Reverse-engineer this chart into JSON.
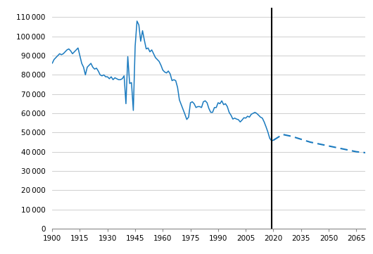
{
  "historical_years": [
    1900,
    1901,
    1902,
    1903,
    1904,
    1905,
    1906,
    1907,
    1908,
    1909,
    1910,
    1911,
    1912,
    1913,
    1914,
    1915,
    1916,
    1917,
    1918,
    1919,
    1920,
    1921,
    1922,
    1923,
    1924,
    1925,
    1926,
    1927,
    1928,
    1929,
    1930,
    1931,
    1932,
    1933,
    1934,
    1935,
    1936,
    1937,
    1938,
    1939,
    1940,
    1941,
    1942,
    1943,
    1944,
    1945,
    1946,
    1947,
    1948,
    1949,
    1950,
    1951,
    1952,
    1953,
    1954,
    1955,
    1956,
    1957,
    1958,
    1959,
    1960,
    1961,
    1962,
    1963,
    1964,
    1965,
    1966,
    1967,
    1968,
    1969,
    1970,
    1971,
    1972,
    1973,
    1974,
    1975,
    1976,
    1977,
    1978,
    1979,
    1980,
    1981,
    1982,
    1983,
    1984,
    1985,
    1986,
    1987,
    1988,
    1989,
    1990,
    1991,
    1992,
    1993,
    1994,
    1995,
    1996,
    1997,
    1998,
    1999,
    2000,
    2001,
    2002,
    2003,
    2004,
    2005,
    2006,
    2007,
    2008,
    2009,
    2010,
    2011,
    2012,
    2013,
    2014,
    2015,
    2016,
    2017,
    2018,
    2019,
    2020
  ],
  "historical_values": [
    86000,
    88000,
    89000,
    90000,
    91000,
    90500,
    91000,
    92000,
    93000,
    93500,
    92500,
    91000,
    92000,
    93000,
    94000,
    90000,
    86000,
    84000,
    80000,
    84000,
    85000,
    86000,
    84000,
    83000,
    83500,
    82000,
    80000,
    79500,
    80000,
    79000,
    79000,
    78000,
    79000,
    77500,
    78500,
    78000,
    77500,
    77500,
    78000,
    79500,
    65000,
    89500,
    75500,
    76000,
    61500,
    95000,
    108000,
    106000,
    97500,
    103000,
    98000,
    93500,
    94000,
    92000,
    93000,
    91000,
    89000,
    88000,
    87000,
    85000,
    82500,
    81500,
    81000,
    82000,
    80500,
    77000,
    77500,
    77000,
    73500,
    67000,
    64500,
    62000,
    59500,
    56800,
    58000,
    65500,
    66000,
    65000,
    63000,
    63500,
    63500,
    63000,
    66000,
    66500,
    65500,
    62500,
    60500,
    60500,
    63000,
    63000,
    65500,
    65000,
    66500,
    64500,
    65000,
    63500,
    60500,
    59000,
    57000,
    57500,
    57000,
    56700,
    55500,
    56500,
    57700,
    57500,
    58500,
    58000,
    59500,
    60000,
    60500,
    59900,
    59000,
    58000,
    57500,
    55500,
    53000,
    50300,
    47000,
    45700,
    46000
  ],
  "projection_years": [
    2020,
    2025,
    2030,
    2035,
    2040,
    2045,
    2050,
    2055,
    2060,
    2065,
    2070
  ],
  "projection_values": [
    46000,
    49000,
    48000,
    46500,
    45000,
    44000,
    43000,
    42000,
    41000,
    40000,
    39500
  ],
  "line_color": "#1a7abf",
  "vline_year": 2019,
  "ylim": [
    0,
    115000
  ],
  "xlim": [
    1900,
    2070
  ],
  "yticks": [
    0,
    10000,
    20000,
    30000,
    40000,
    50000,
    60000,
    70000,
    80000,
    90000,
    100000,
    110000
  ],
  "xticks": [
    1900,
    1915,
    1930,
    1945,
    1960,
    1975,
    1990,
    2005,
    2020,
    2035,
    2050,
    2065
  ],
  "background_color": "#ffffff",
  "grid_color": "#c8c8c8"
}
